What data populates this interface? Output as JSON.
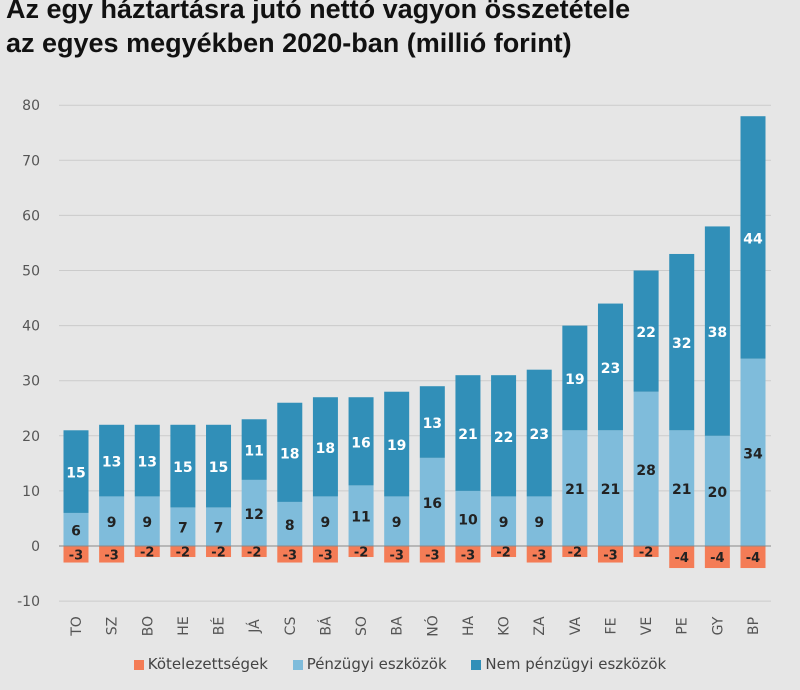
{
  "chart_data": {
    "type": "bar",
    "stacked": true,
    "title": "Az egy háztartásra jutó nettó vagyon összetétele az egyes megyékben 2020-ban (millió forint)",
    "title_lines": [
      "Az egy háztartásra jutó nettó vagyon összetétele",
      "az egyes megyékben 2020-ban (millió forint)"
    ],
    "xlabel": "",
    "ylabel": "",
    "ylim": [
      -10,
      80
    ],
    "yticks": [
      -10,
      0,
      10,
      20,
      30,
      40,
      50,
      60,
      70,
      80
    ],
    "grid": true,
    "legend_position": "bottom",
    "categories": [
      "TO",
      "SZ",
      "BO",
      "HE",
      "BÉ",
      "JÁ",
      "CS",
      "BÁ",
      "SO",
      "BA",
      "NÓ",
      "HA",
      "KO",
      "ZA",
      "VA",
      "FE",
      "VE",
      "PE",
      "GY",
      "BP"
    ],
    "series": [
      {
        "name": "Kötelezettségek",
        "color": "#f47c56",
        "label_color": "#222222",
        "values": [
          -3,
          -3,
          -2,
          -2,
          -2,
          -2,
          -3,
          -3,
          -2,
          -3,
          -3,
          -3,
          -2,
          -3,
          -2,
          -3,
          -2,
          -4,
          -4,
          -4
        ]
      },
      {
        "name": "Pénzügyi eszközök",
        "color": "#7fbcdb",
        "label_color": "#222222",
        "values": [
          6,
          9,
          9,
          7,
          7,
          12,
          8,
          9,
          11,
          9,
          16,
          10,
          9,
          9,
          21,
          21,
          28,
          21,
          20,
          34
        ]
      },
      {
        "name": "Nem pénzügyi eszközök",
        "color": "#318fb8",
        "label_color": "#ffffff",
        "values": [
          15,
          13,
          13,
          15,
          15,
          11,
          18,
          18,
          16,
          19,
          13,
          21,
          22,
          23,
          19,
          23,
          22,
          32,
          38,
          44
        ]
      }
    ]
  }
}
